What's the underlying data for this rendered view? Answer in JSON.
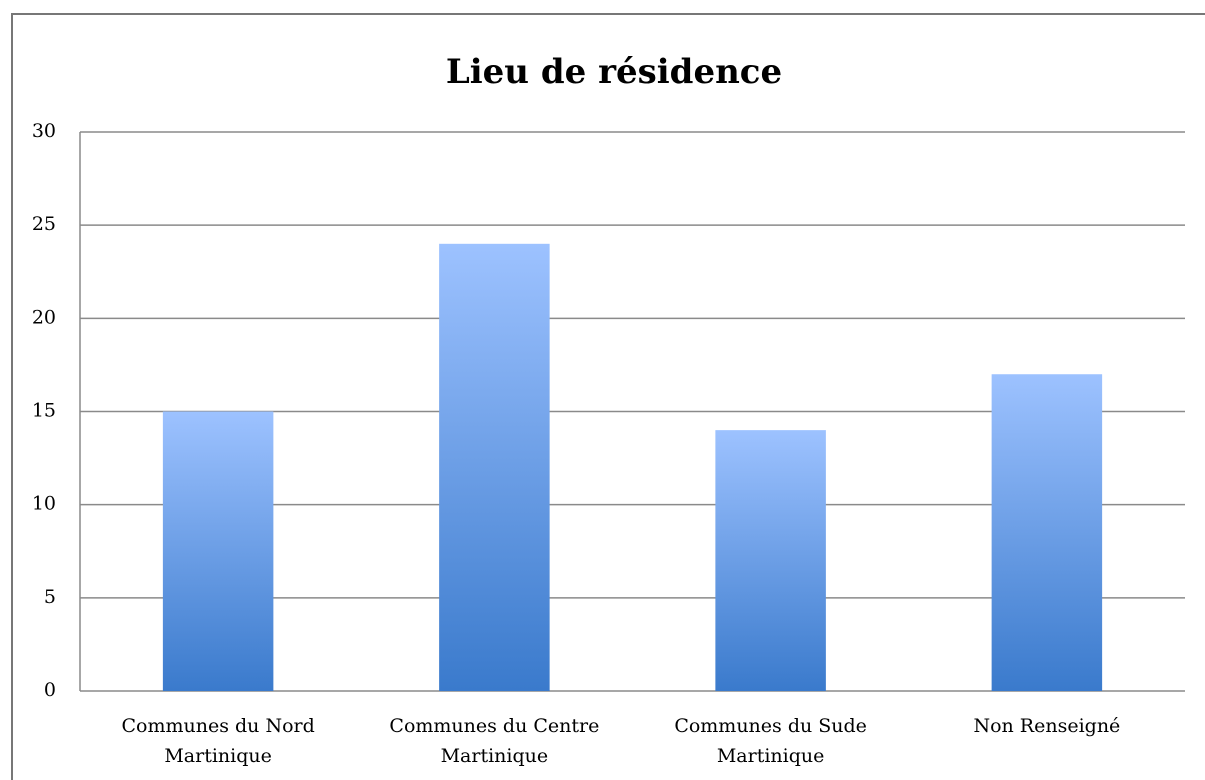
{
  "chart_data": {
    "type": "bar",
    "title": "Lieu de résidence",
    "categories": [
      "Communes du Nord Martinique",
      "Communes du Centre Martinique",
      "Communes du Sude Martinique",
      "Non Renseigné"
    ],
    "values": [
      15,
      24,
      14,
      17
    ],
    "color": "#4a86d8",
    "ylim": [
      0,
      30
    ],
    "yticks": [
      0,
      5,
      10,
      15,
      20,
      25,
      30
    ],
    "grid": true
  }
}
